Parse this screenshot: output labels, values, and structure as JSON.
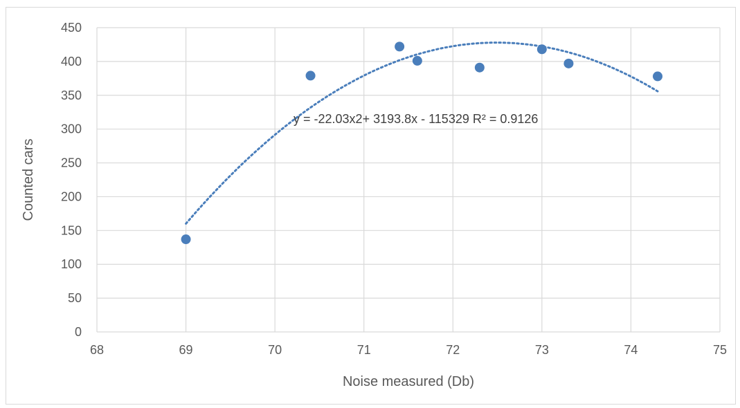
{
  "chart_data": {
    "type": "scatter",
    "title": "",
    "xlabel": "Noise measured (Db)",
    "ylabel": "Counted cars",
    "xlim": [
      68,
      75
    ],
    "ylim": [
      0,
      450
    ],
    "xticks": [
      "68",
      "69",
      "70",
      "71",
      "72",
      "73",
      "74",
      "75"
    ],
    "yticks": [
      "0",
      "50",
      "100",
      "150",
      "200",
      "250",
      "300",
      "350",
      "400",
      "450"
    ],
    "grid": true,
    "legend": "none",
    "marker_color": "#4a7ebb",
    "trendline_color": "#4a7ebb",
    "points": [
      {
        "x": 69.0,
        "y": 137
      },
      {
        "x": 70.4,
        "y": 379
      },
      {
        "x": 71.4,
        "y": 422
      },
      {
        "x": 71.6,
        "y": 401
      },
      {
        "x": 72.3,
        "y": 391
      },
      {
        "x": 73.0,
        "y": 418
      },
      {
        "x": 73.3,
        "y": 397
      },
      {
        "x": 74.3,
        "y": 378
      }
    ],
    "trendline": {
      "type": "polynomial-2",
      "x_range": [
        69.0,
        74.3
      ],
      "equation": "y = -22.03x2+ 3193.8x - 115329 R² = 0.9126"
    }
  }
}
